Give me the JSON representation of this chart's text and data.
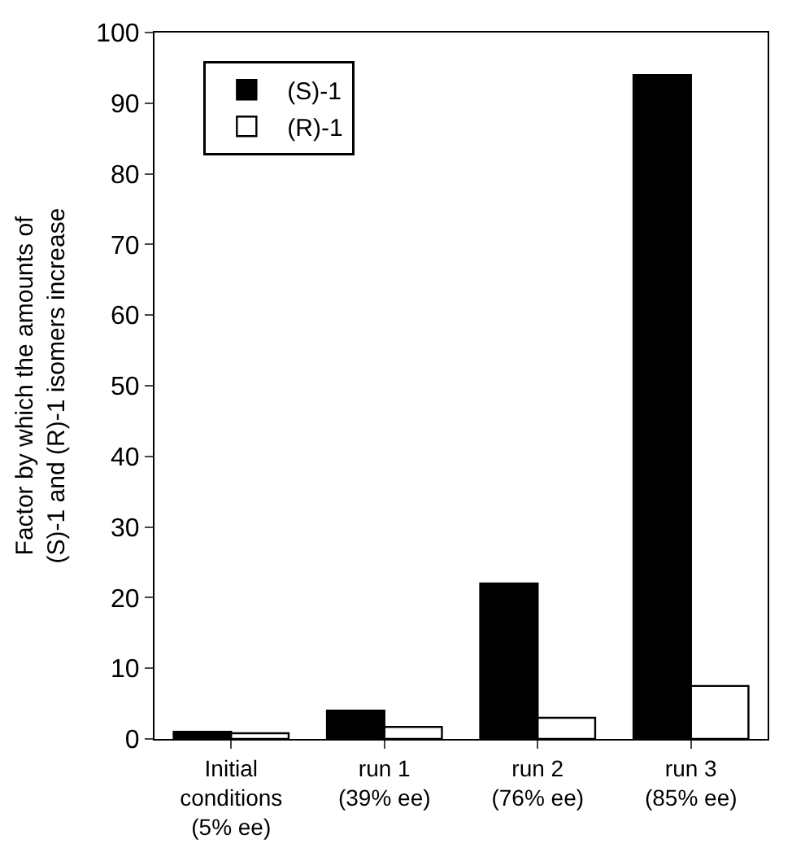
{
  "chart_data": {
    "type": "bar",
    "ylabel": "Factor by which the amounts of\n(S)-1 and (R)-1 isomers increase",
    "categories": [
      "Initial\nconditions\n(5% ee)",
      "run 1\n(39% ee)",
      "run 2\n(76% ee)",
      "run 3\n(85% ee)"
    ],
    "series": [
      {
        "name": "(S)-1",
        "color": "#000000",
        "values": [
          1,
          4,
          22,
          94
        ]
      },
      {
        "name": "(R)-1",
        "color": "#ffffff",
        "values": [
          0.8,
          1.7,
          3,
          7.5
        ]
      }
    ],
    "ylim": [
      0,
      100
    ],
    "yticks": [
      0,
      10,
      20,
      30,
      40,
      50,
      60,
      70,
      80,
      90,
      100
    ],
    "legend": "top left"
  }
}
